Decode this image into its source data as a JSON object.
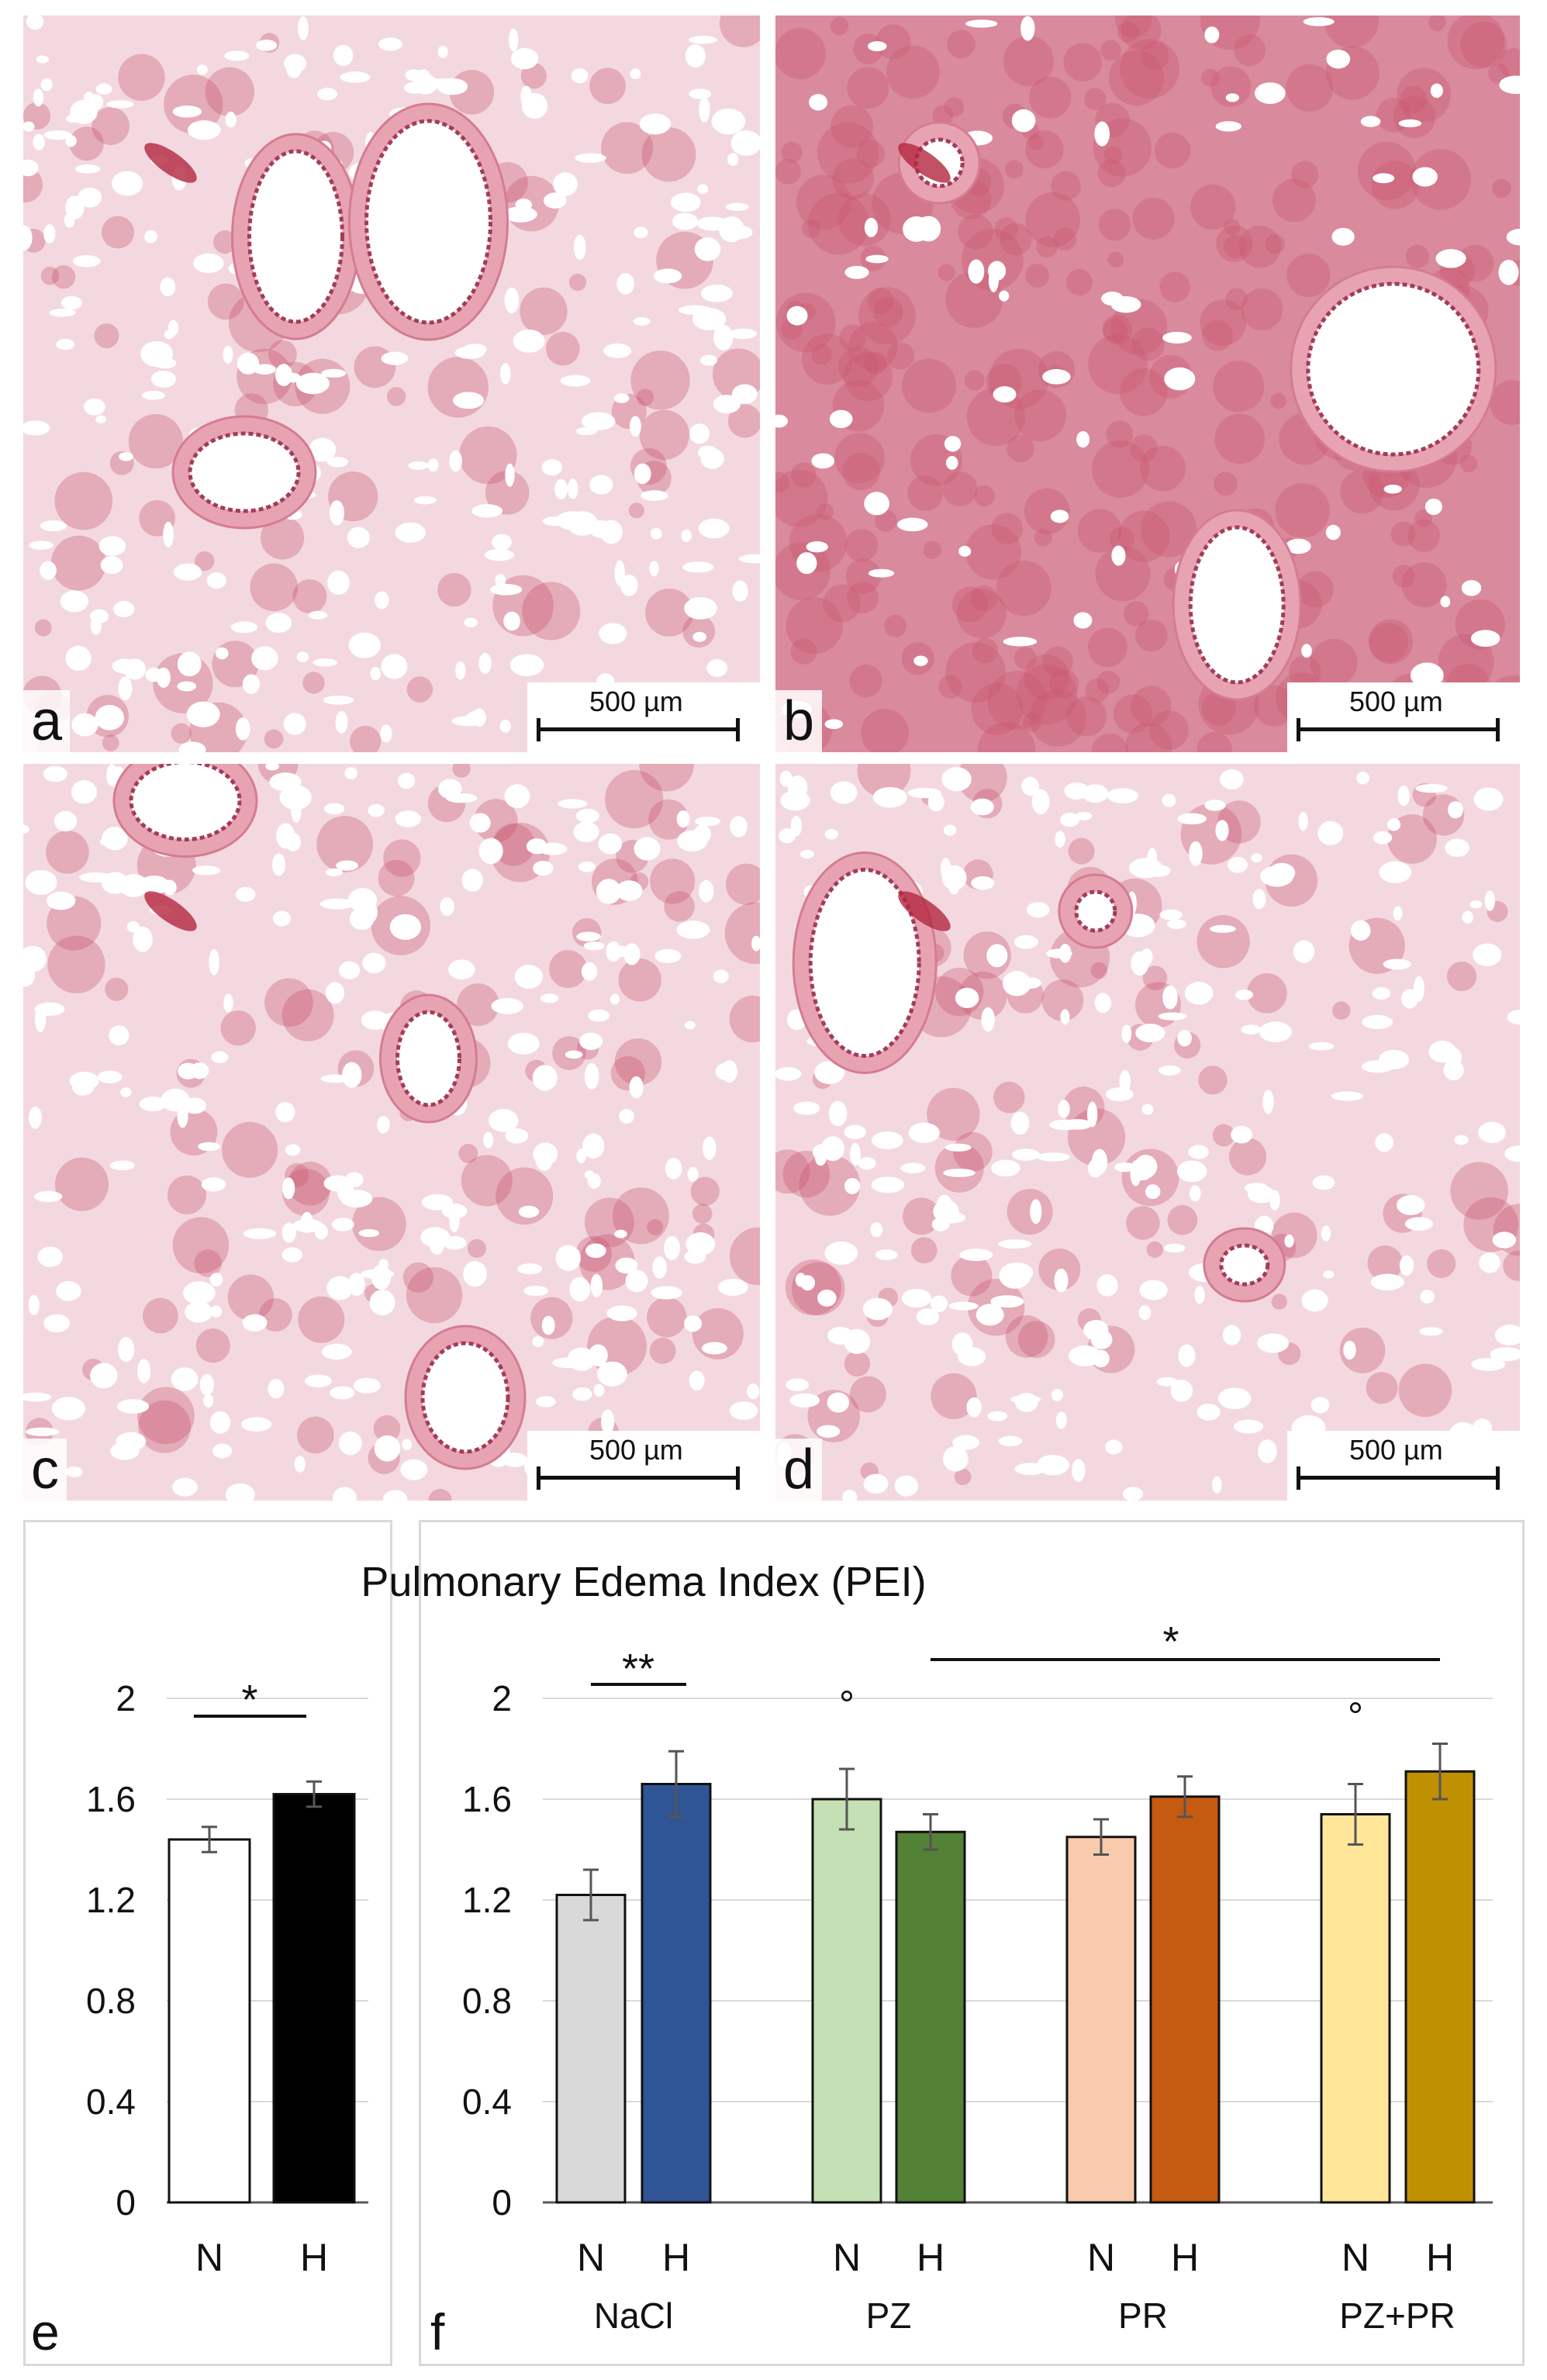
{
  "micrographs": [
    {
      "letter": "a",
      "scale_label": "500 µm"
    },
    {
      "letter": "b",
      "scale_label": "500 µm"
    },
    {
      "letter": "c",
      "scale_label": "500 µm"
    },
    {
      "letter": "d",
      "scale_label": "500 µm"
    }
  ],
  "chart_title": "Pulmonary Edema Index (PEI)",
  "colors": {
    "tissue_bg": "#f3d9df",
    "tissue_dense": "#c9576f",
    "vessel_wall": "#e8a3b3",
    "blood": "#b3263f",
    "axis": "#595959",
    "grid": "#d9d9d9"
  },
  "chart_data": [
    {
      "panel": "e",
      "type": "bar",
      "categories": [
        "N",
        "H"
      ],
      "values": [
        1.44,
        1.62
      ],
      "errors": [
        0.05,
        0.05
      ],
      "colors": [
        "#ffffff",
        "#000000"
      ],
      "ylim": [
        0,
        2
      ],
      "yticks": [
        "0",
        "0.4",
        "0.8",
        "1.2",
        "1.6",
        "2"
      ],
      "annotations": [
        {
          "text": "*",
          "between": [
            "N",
            "H"
          ]
        }
      ]
    },
    {
      "panel": "f",
      "type": "bar",
      "groups": [
        "NaCl",
        "PZ",
        "PR",
        "PZ+PR"
      ],
      "categories": [
        "N",
        "H",
        "N",
        "H",
        "N",
        "H",
        "N",
        "H"
      ],
      "values": [
        1.22,
        1.66,
        1.6,
        1.47,
        1.45,
        1.61,
        1.54,
        1.71
      ],
      "errors": [
        0.1,
        0.13,
        0.12,
        0.07,
        0.07,
        0.08,
        0.12,
        0.11
      ],
      "colors": [
        "#d9d9d9",
        "#2f5597",
        "#c5e0b4",
        "#538135",
        "#f8cbad",
        "#c55a11",
        "#ffe699",
        "#bf9000"
      ],
      "ylim": [
        0,
        2
      ],
      "yticks": [
        "0",
        "0.4",
        "0.8",
        "1.2",
        "1.6",
        "2"
      ],
      "annotations": [
        {
          "text": "**",
          "between": [
            "NaCl N",
            "NaCl H"
          ]
        },
        {
          "text": "*",
          "between": [
            "PZ H",
            "PZ+PR H"
          ]
        },
        {
          "text": "°",
          "over": "PZ N"
        },
        {
          "text": "°",
          "over": "PZ+PR N"
        }
      ]
    }
  ]
}
